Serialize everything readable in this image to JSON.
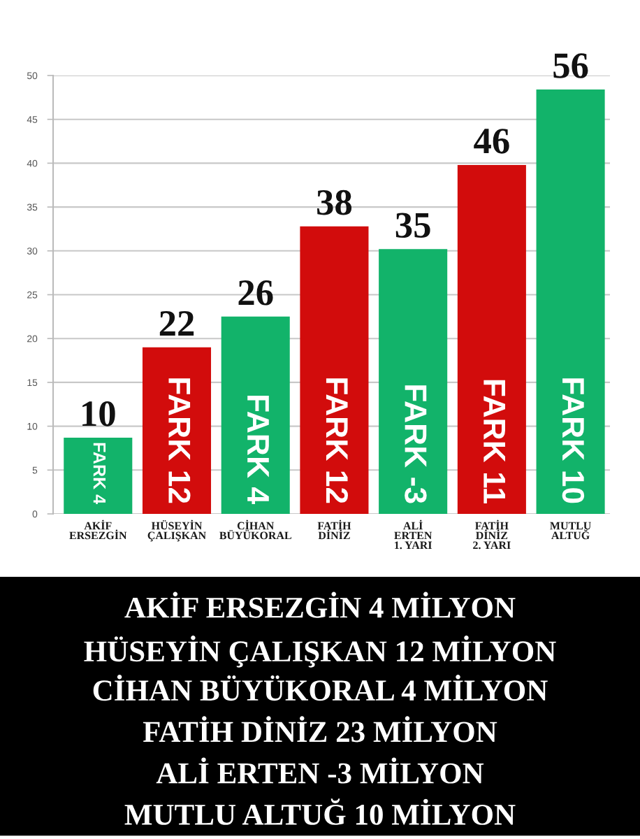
{
  "chart_data": {
    "type": "bar",
    "categories": [
      "AKİF\nERSEZGİN",
      "HÜSEYİN\nÇALIŞKAN",
      "CİHAN\nBÜYÜKORAL",
      "FATİH\nDİNİZ",
      "ALİ\nERTEN\n1. YARI",
      "FATİH\nDİNİZ\n2. YARI",
      "MUTLU\nALTUĞ"
    ],
    "values": [
      8.7,
      19.0,
      22.5,
      32.8,
      30.2,
      39.8,
      48.4
    ],
    "colors": [
      "#12b36a",
      "#d20c0c",
      "#12b36a",
      "#d20c0c",
      "#12b36a",
      "#d20c0c",
      "#12b36a"
    ],
    "ylim": [
      0,
      50
    ],
    "yticks": [
      0,
      5,
      10,
      15,
      20,
      25,
      30,
      35,
      40,
      45,
      50
    ],
    "grid": "y",
    "annotations": [
      {
        "text": "10",
        "x": "AKİF\nERSEZGİN",
        "y": 8.7
      },
      {
        "text": "22",
        "x": "HÜSEYİN\nÇALIŞKAN",
        "y": 19.0
      },
      {
        "text": "26",
        "x": "CİHAN\nBÜYÜKORAL",
        "y": 22.5
      },
      {
        "text": "38",
        "x": "FATİH\nDİNİZ",
        "y": 32.8
      },
      {
        "text": "35",
        "x": "ALİ\nERTEN\n1. YARI",
        "y": 30.2
      },
      {
        "text": "46",
        "x": "FATİH\nDİNİZ\n2. YARI",
        "y": 39.8
      },
      {
        "text": "56",
        "x": "MUTLU\nALTUĞ",
        "y": 48.4
      },
      {
        "text": "FARK 4",
        "x": "AKİF\nERSEZGİN",
        "y": 0
      },
      {
        "text": "FARK 12",
        "x": "HÜSEYİN\nÇALIŞKAN",
        "y": 0
      },
      {
        "text": "FARK 4",
        "x": "CİHAN\nBÜYÜKORAL",
        "y": 0
      },
      {
        "text": "FARK 12",
        "x": "FATİH\nDİNİZ",
        "y": 0
      },
      {
        "text": "FARK -3",
        "x": "ALİ\nERTEN\n1. YARI",
        "y": 0
      },
      {
        "text": "FARK 11",
        "x": "FATİH\nDİNİZ\n2. YARI",
        "y": 0
      },
      {
        "text": "FARK 10",
        "x": "MUTLU\nALTUĞ",
        "y": 0
      },
      "AKİF ERSEZGİN 4 MİLYON",
      "HÜSEYİN ÇALIŞKAN 12 MİLYON",
      "CİHAN BÜYÜKORAL 4 MİLYON",
      "FATİH DİNİZ 23 MİLYON",
      "ALİ ERTEN -3 MİLYON",
      "MUTLU ALTUĞ 10 MİLYON"
    ]
  }
}
